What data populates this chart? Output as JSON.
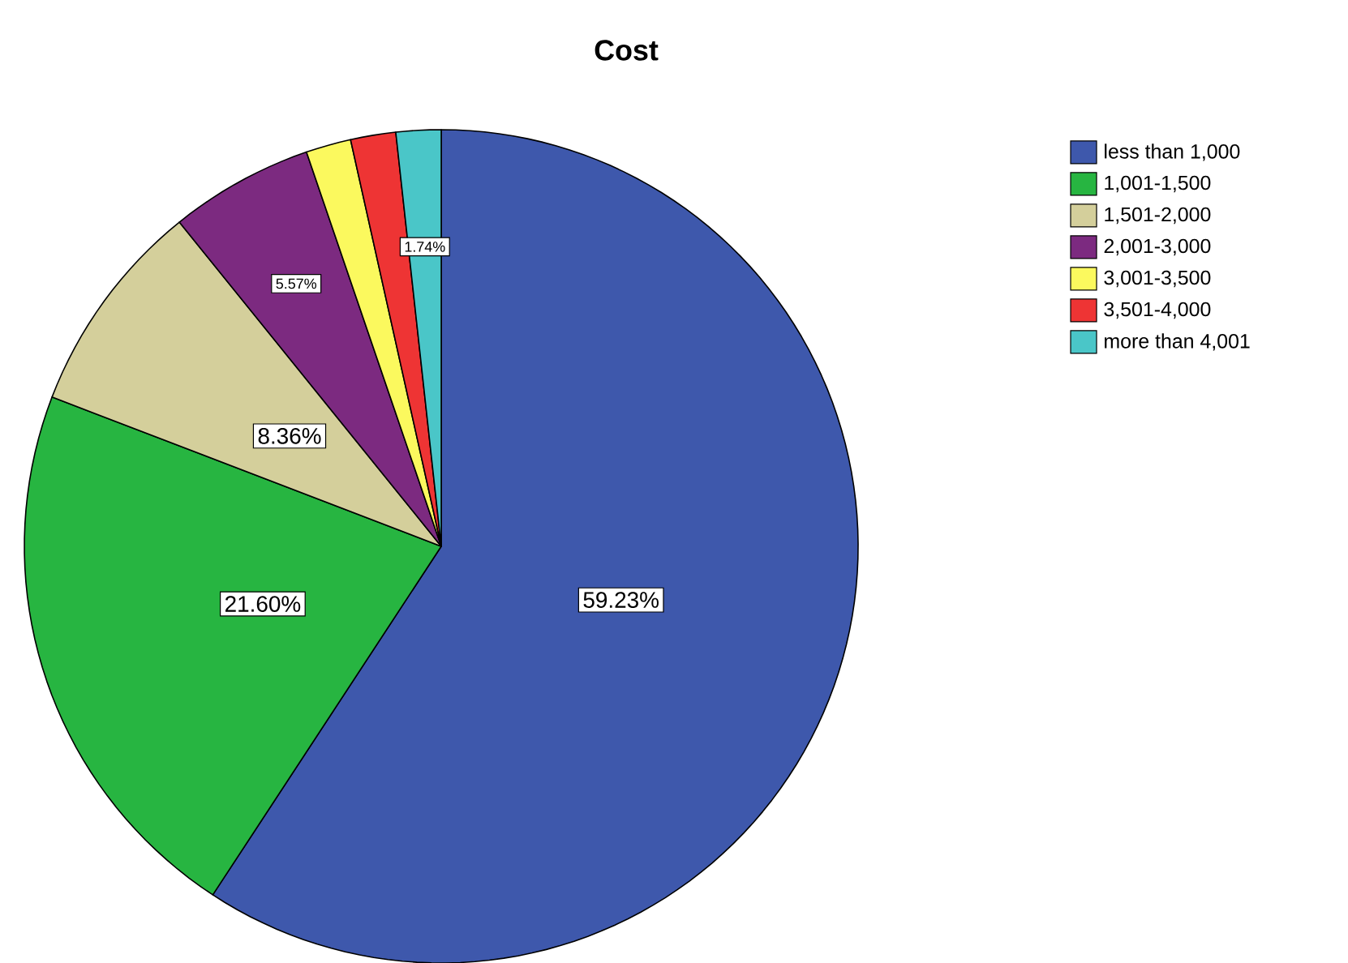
{
  "chart_data": {
    "type": "pie",
    "title": "Cost",
    "categories": [
      "less than 1,000",
      "1,001-1,500",
      "1,501-2,000",
      "2,001-3,000",
      "3,001-3,500",
      "3,501-4,000",
      "more than 4,001"
    ],
    "values": [
      59.23,
      21.6,
      8.36,
      5.57,
      1.75,
      1.75,
      1.74
    ],
    "value_labels": [
      "59.23%",
      "21.60%",
      "8.36%",
      "5.57%",
      null,
      null,
      "1.74%"
    ],
    "colors": [
      "#3e58ac",
      "#27b541",
      "#d4cf9b",
      "#7c2a80",
      "#fbf95e",
      "#ee3434",
      "#4ac6c8"
    ],
    "legend": "top right"
  }
}
